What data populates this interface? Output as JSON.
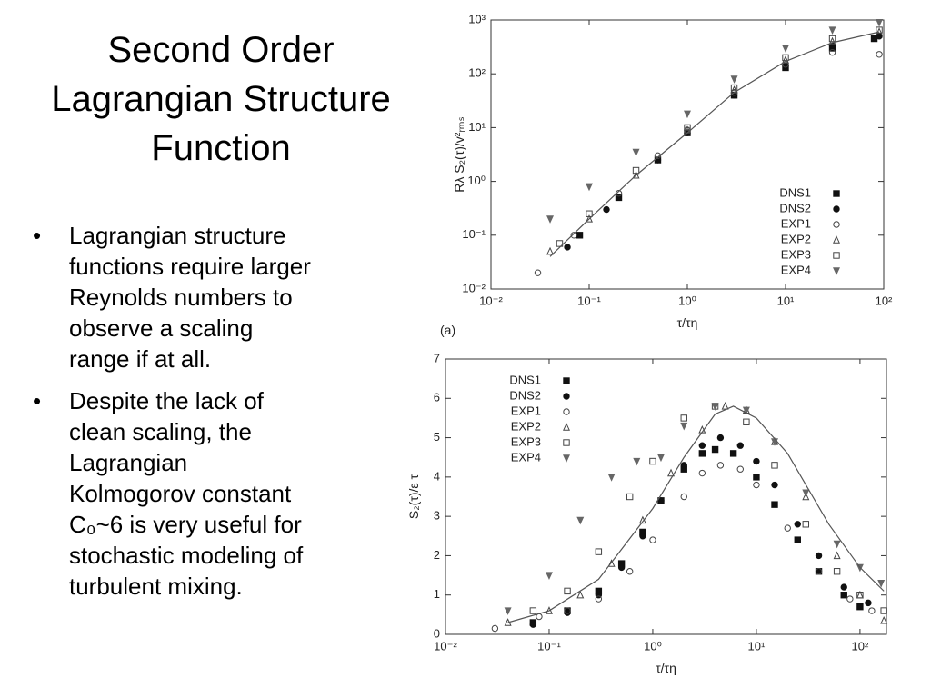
{
  "slide": {
    "title": [
      "Second Order",
      "Lagrangian Structure",
      "Function"
    ],
    "bullets": [
      [
        "Lagrangian structure",
        "functions require larger",
        "Reynolds numbers to",
        "observe a scaling",
        "range if at all."
      ],
      [
        "Despite the lack of",
        "clean scaling, the",
        "Lagrangian",
        "Kolmogorov constant",
        "C₀~6 is very useful for",
        "stochastic modeling of",
        "turbulent mixing."
      ]
    ]
  },
  "chart_data": [
    {
      "type": "scatter",
      "panel_label": "(a)",
      "xlabel": "τ/τη",
      "ylabel": "Rλ S₂(τ)/v²ᵣₘₛ",
      "xlog": true,
      "ylog": true,
      "legend": "lower right",
      "xlim": [
        0.01,
        100
      ],
      "ylim": [
        0.01,
        1000
      ],
      "xticks": [
        {
          "value": 0.01,
          "label": "10⁻²"
        },
        {
          "value": 0.1,
          "label": "10⁻¹"
        },
        {
          "value": 1,
          "label": "10⁰"
        },
        {
          "value": 10,
          "label": "10¹"
        },
        {
          "value": 100,
          "label": "10²"
        }
      ],
      "yticks": [
        {
          "value": 0.01,
          "label": "10⁻²"
        },
        {
          "value": 0.1,
          "label": "10⁻¹"
        },
        {
          "value": 1,
          "label": "10⁰"
        },
        {
          "value": 10,
          "label": "10¹"
        },
        {
          "value": 100,
          "label": "10²"
        },
        {
          "value": 1000,
          "label": "10³"
        }
      ],
      "series": [
        {
          "name": "DNS1",
          "marker": "square",
          "filled": true,
          "color": "#111",
          "x": [
            0.08,
            0.2,
            0.5,
            1,
            3,
            10,
            30,
            80
          ],
          "values": [
            0.1,
            0.5,
            2.5,
            8,
            40,
            130,
            300,
            450
          ]
        },
        {
          "name": "DNS2",
          "marker": "circle",
          "filled": true,
          "color": "#111",
          "x": [
            0.06,
            0.15,
            0.5,
            1,
            3,
            10,
            30,
            90
          ],
          "values": [
            0.06,
            0.3,
            2.5,
            8,
            40,
            140,
            330,
            500
          ]
        },
        {
          "name": "EXP1",
          "marker": "circle",
          "filled": false,
          "color": "#444",
          "x": [
            0.03,
            0.07,
            0.2,
            0.5,
            1,
            3,
            10,
            30,
            90
          ],
          "values": [
            0.02,
            0.1,
            0.6,
            3,
            9,
            45,
            150,
            250,
            230
          ]
        },
        {
          "name": "EXP2",
          "marker": "triangle",
          "filled": false,
          "color": "#444",
          "x": [
            0.04,
            0.1,
            0.3,
            1,
            3,
            10,
            30,
            90
          ],
          "values": [
            0.05,
            0.2,
            1.3,
            9,
            50,
            180,
            400,
            600
          ]
        },
        {
          "name": "EXP3",
          "marker": "square",
          "filled": false,
          "color": "#444",
          "x": [
            0.05,
            0.1,
            0.3,
            1,
            3,
            10,
            30,
            90
          ],
          "values": [
            0.07,
            0.25,
            1.6,
            10,
            55,
            200,
            450,
            650
          ]
        },
        {
          "name": "EXP4",
          "marker": "down-triangle",
          "filled": true,
          "color": "#666",
          "x": [
            0.04,
            0.1,
            0.3,
            1,
            3,
            10,
            30,
            90
          ],
          "values": [
            0.2,
            0.8,
            3.5,
            18,
            80,
            300,
            650,
            900
          ]
        },
        {
          "marker": "line",
          "color": "#555",
          "x": [
            0.04,
            0.1,
            0.3,
            1,
            3,
            10,
            30,
            90
          ],
          "values": [
            0.04,
            0.2,
            1.3,
            8,
            45,
            170,
            380,
            600
          ]
        }
      ]
    },
    {
      "type": "scatter",
      "xlabel": "τ/τη",
      "ylabel": "S₂(τ)/ε τ",
      "xlog": true,
      "ylog": false,
      "legend": "upper left",
      "xlim": [
        0.01,
        180
      ],
      "ylim": [
        0,
        7
      ],
      "xticks": [
        {
          "value": 0.01,
          "label": "10⁻²"
        },
        {
          "value": 0.1,
          "label": "10⁻¹"
        },
        {
          "value": 1,
          "label": "10⁰"
        },
        {
          "value": 10,
          "label": "10¹"
        },
        {
          "value": 100,
          "label": "10²"
        }
      ],
      "yticks": [
        0,
        1,
        2,
        3,
        4,
        5,
        6,
        7
      ],
      "series": [
        {
          "name": "DNS1",
          "marker": "square",
          "filled": true,
          "color": "#111",
          "x": [
            0.07,
            0.15,
            0.3,
            0.5,
            0.8,
            1.2,
            2,
            3,
            4,
            6,
            10,
            15,
            25,
            40,
            70,
            100
          ],
          "values": [
            0.3,
            0.6,
            1.1,
            1.8,
            2.6,
            3.4,
            4.2,
            4.6,
            4.7,
            4.6,
            4.0,
            3.3,
            2.4,
            1.6,
            1.0,
            0.7
          ]
        },
        {
          "name": "DNS2",
          "marker": "circle",
          "filled": true,
          "color": "#111",
          "x": [
            0.07,
            0.15,
            0.3,
            0.5,
            0.8,
            1.2,
            2,
            3,
            4.5,
            7,
            10,
            15,
            25,
            40,
            70,
            120
          ],
          "values": [
            0.25,
            0.55,
            1.0,
            1.7,
            2.5,
            3.4,
            4.3,
            4.8,
            5.0,
            4.8,
            4.4,
            3.8,
            2.8,
            2.0,
            1.2,
            0.8
          ]
        },
        {
          "name": "EXP1",
          "marker": "circle",
          "filled": false,
          "color": "#444",
          "x": [
            0.03,
            0.08,
            0.15,
            0.3,
            0.6,
            1,
            2,
            3,
            4.5,
            7,
            10,
            20,
            40,
            80,
            130
          ],
          "values": [
            0.15,
            0.45,
            0.6,
            0.9,
            1.6,
            2.4,
            3.5,
            4.1,
            4.3,
            4.2,
            3.8,
            2.7,
            1.6,
            0.9,
            0.6
          ]
        },
        {
          "name": "EXP2",
          "marker": "triangle",
          "filled": false,
          "color": "#444",
          "x": [
            0.04,
            0.1,
            0.2,
            0.4,
            0.8,
            1.5,
            3,
            5,
            8,
            15,
            30,
            60,
            100,
            170
          ],
          "values": [
            0.3,
            0.6,
            1.0,
            1.8,
            2.9,
            4.1,
            5.2,
            5.8,
            5.7,
            4.9,
            3.5,
            2.0,
            1.0,
            0.35
          ]
        },
        {
          "name": "EXP3",
          "marker": "square",
          "filled": false,
          "color": "#444",
          "x": [
            0.07,
            0.15,
            0.3,
            0.6,
            1,
            2,
            4,
            8,
            15,
            30,
            60,
            100,
            170
          ],
          "values": [
            0.6,
            1.1,
            2.1,
            3.5,
            4.4,
            5.5,
            5.8,
            5.4,
            4.3,
            2.8,
            1.6,
            1.0,
            0.6
          ]
        },
        {
          "name": "EXP4",
          "marker": "down-triangle",
          "filled": true,
          "color": "#666",
          "x": [
            0.04,
            0.1,
            0.2,
            0.4,
            0.7,
            1.2,
            2,
            4,
            8,
            15,
            30,
            60,
            100,
            160
          ],
          "values": [
            0.6,
            1.5,
            2.9,
            4.0,
            4.4,
            4.5,
            5.3,
            5.8,
            5.7,
            4.9,
            3.6,
            2.3,
            1.7,
            1.3
          ]
        },
        {
          "marker": "line",
          "color": "#555",
          "x": [
            0.04,
            0.1,
            0.3,
            1,
            2,
            4,
            6,
            10,
            20,
            50,
            100,
            170
          ],
          "values": [
            0.3,
            0.6,
            1.4,
            3.2,
            4.5,
            5.6,
            5.8,
            5.5,
            4.6,
            2.8,
            1.7,
            1.1
          ]
        }
      ]
    }
  ]
}
